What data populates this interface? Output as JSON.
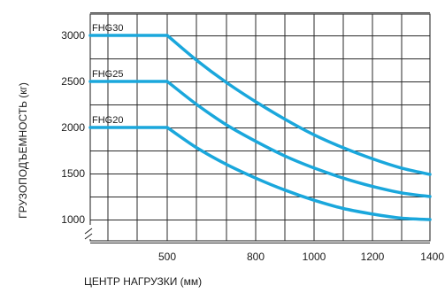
{
  "chart_data": {
    "type": "line",
    "xlabel": "ЦЕНТР НАГРУЗКИ (мм)",
    "ylabel": "ГРУЗОПОДЪЕМНОСТЬ (кг)",
    "x_ticks": [
      500,
      800,
      1000,
      1200,
      1400
    ],
    "x_tick_labels": [
      "500",
      "800",
      "1000",
      "1200",
      "1400"
    ],
    "y_ticks": [
      1000,
      1500,
      2000,
      2500,
      3000
    ],
    "y_tick_labels": [
      "1000",
      "1500",
      "2000",
      "2500",
      "3000"
    ],
    "xlim": [
      240,
      1400
    ],
    "ylim": [
      700,
      3250
    ],
    "grid": true,
    "y_axis_break": true,
    "series_color": "#1aa7dc",
    "series": [
      {
        "name": "FHG30",
        "points": [
          [
            240,
            3000
          ],
          [
            500,
            3000
          ],
          [
            600,
            2730
          ],
          [
            700,
            2490
          ],
          [
            800,
            2280
          ],
          [
            900,
            2090
          ],
          [
            1000,
            1920
          ],
          [
            1100,
            1780
          ],
          [
            1200,
            1660
          ],
          [
            1300,
            1560
          ],
          [
            1400,
            1490
          ]
        ]
      },
      {
        "name": "FHG25",
        "points": [
          [
            240,
            2500
          ],
          [
            500,
            2500
          ],
          [
            600,
            2250
          ],
          [
            700,
            2030
          ],
          [
            800,
            1850
          ],
          [
            900,
            1690
          ],
          [
            1000,
            1560
          ],
          [
            1100,
            1450
          ],
          [
            1200,
            1360
          ],
          [
            1300,
            1290
          ],
          [
            1400,
            1250
          ]
        ]
      },
      {
        "name": "FHG20",
        "points": [
          [
            240,
            2000
          ],
          [
            500,
            2000
          ],
          [
            600,
            1780
          ],
          [
            700,
            1600
          ],
          [
            800,
            1450
          ],
          [
            900,
            1320
          ],
          [
            1000,
            1210
          ],
          [
            1100,
            1120
          ],
          [
            1200,
            1060
          ],
          [
            1300,
            1015
          ],
          [
            1400,
            1000
          ]
        ]
      }
    ]
  }
}
